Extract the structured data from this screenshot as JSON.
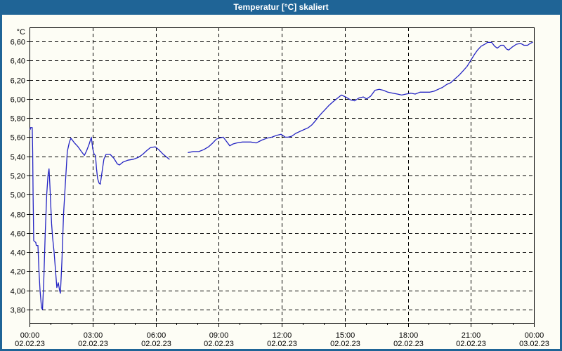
{
  "window": {
    "title": "Temperatur [°C] skaliert"
  },
  "colors": {
    "titlebar_bg": "#1f6496",
    "titlebar_text": "#ffffff",
    "window_border": "#1f6496",
    "content_bg": "#fdfdf5",
    "line": "#2424c3",
    "grid": "#000000",
    "text": "#000000"
  },
  "chart_data": {
    "type": "line",
    "title": "Temperatur [°C] skaliert",
    "grid": true,
    "legend": "none",
    "y_axis": {
      "unit_label": "°C",
      "min": 3.66,
      "max": 6.75,
      "tick_values": [
        6.6,
        6.4,
        6.2,
        6.0,
        5.8,
        5.6,
        5.4,
        5.2,
        5.0,
        4.8,
        4.6,
        4.4,
        4.2,
        4.0,
        3.8
      ],
      "tick_labels": [
        "6,60",
        "6,40",
        "6,20",
        "6,00",
        "5,80",
        "5,60",
        "5,40",
        "5,20",
        "5,00",
        "4,80",
        "4,60",
        "4,40",
        "4,20",
        "4,00",
        "3,80"
      ]
    },
    "x_axis": {
      "range_hours": [
        0,
        24
      ],
      "minor_tick_every_hours": 1,
      "major_ticks": [
        {
          "hour": 0,
          "time": "00:00",
          "date": "02.02.23"
        },
        {
          "hour": 3,
          "time": "03:00",
          "date": "02.02.23"
        },
        {
          "hour": 6,
          "time": "06:00",
          "date": "02.02.23"
        },
        {
          "hour": 9,
          "time": "09:00",
          "date": "02.02.23"
        },
        {
          "hour": 12,
          "time": "12:00",
          "date": "02.02.23"
        },
        {
          "hour": 15,
          "time": "15:00",
          "date": "02.02.23"
        },
        {
          "hour": 18,
          "time": "18:00",
          "date": "02.02.23"
        },
        {
          "hour": 21,
          "time": "21:00",
          "date": "02.02.23"
        },
        {
          "hour": 24,
          "time": "00:00",
          "date": "03.02.23"
        }
      ]
    },
    "series": [
      {
        "name": "Temperatur",
        "unit": "°C",
        "color": "#2424c3",
        "segments": [
          [
            [
              0.03,
              5.68
            ],
            [
              0.05,
              5.7
            ],
            [
              0.13,
              5.7
            ],
            [
              0.15,
              5.45
            ],
            [
              0.17,
              5.0
            ],
            [
              0.2,
              4.52
            ],
            [
              0.3,
              4.5
            ],
            [
              0.32,
              4.47
            ],
            [
              0.4,
              4.47
            ],
            [
              0.45,
              4.2
            ],
            [
              0.5,
              4.0
            ],
            [
              0.57,
              3.82
            ],
            [
              0.62,
              3.8
            ],
            [
              0.68,
              4.1
            ],
            [
              0.75,
              4.6
            ],
            [
              0.82,
              5.0
            ],
            [
              0.88,
              5.2
            ],
            [
              0.93,
              5.27
            ],
            [
              0.97,
              5.1
            ],
            [
              1.05,
              4.7
            ],
            [
              1.1,
              4.55
            ],
            [
              1.17,
              4.4
            ],
            [
              1.24,
              4.2
            ],
            [
              1.3,
              4.03
            ],
            [
              1.37,
              4.08
            ],
            [
              1.43,
              4.0
            ],
            [
              1.47,
              3.97
            ],
            [
              1.54,
              4.3
            ],
            [
              1.62,
              4.8
            ],
            [
              1.7,
              5.1
            ],
            [
              1.8,
              5.45
            ],
            [
              1.9,
              5.55
            ],
            [
              1.97,
              5.59
            ],
            [
              2.14,
              5.54
            ],
            [
              2.31,
              5.5
            ],
            [
              2.47,
              5.45
            ],
            [
              2.61,
              5.41
            ],
            [
              2.72,
              5.46
            ],
            [
              2.84,
              5.53
            ],
            [
              2.94,
              5.6
            ],
            [
              3.01,
              5.48
            ],
            [
              3.08,
              5.42
            ],
            [
              3.14,
              5.41
            ],
            [
              3.19,
              5.27
            ],
            [
              3.24,
              5.17
            ],
            [
              3.31,
              5.12
            ],
            [
              3.37,
              5.11
            ],
            [
              3.44,
              5.22
            ],
            [
              3.54,
              5.37
            ],
            [
              3.64,
              5.42
            ],
            [
              3.84,
              5.42
            ],
            [
              4.01,
              5.38
            ],
            [
              4.18,
              5.32
            ],
            [
              4.28,
              5.31
            ],
            [
              4.45,
              5.34
            ],
            [
              4.68,
              5.36
            ],
            [
              4.95,
              5.37
            ],
            [
              5.18,
              5.39
            ],
            [
              5.38,
              5.42
            ],
            [
              5.58,
              5.46
            ],
            [
              5.75,
              5.49
            ],
            [
              5.98,
              5.5
            ],
            [
              6.15,
              5.47
            ],
            [
              6.32,
              5.43
            ],
            [
              6.48,
              5.4
            ],
            [
              6.65,
              5.37
            ]
          ],
          [
            [
              7.55,
              5.44
            ],
            [
              7.79,
              5.45
            ],
            [
              8.06,
              5.45
            ],
            [
              8.29,
              5.47
            ],
            [
              8.52,
              5.5
            ],
            [
              8.72,
              5.54
            ],
            [
              8.89,
              5.58
            ],
            [
              9.02,
              5.59
            ],
            [
              9.22,
              5.6
            ],
            [
              9.36,
              5.56
            ],
            [
              9.53,
              5.51
            ],
            [
              9.69,
              5.53
            ],
            [
              9.86,
              5.54
            ],
            [
              10.13,
              5.55
            ],
            [
              10.53,
              5.55
            ],
            [
              10.79,
              5.54
            ],
            [
              11.06,
              5.57
            ],
            [
              11.3,
              5.59
            ],
            [
              11.53,
              5.6
            ],
            [
              11.77,
              5.62
            ],
            [
              11.97,
              5.63
            ],
            [
              12.17,
              5.6
            ],
            [
              12.3,
              5.6
            ],
            [
              12.47,
              5.61
            ],
            [
              12.67,
              5.64
            ],
            [
              12.87,
              5.66
            ],
            [
              13.07,
              5.68
            ],
            [
              13.27,
              5.7
            ],
            [
              13.44,
              5.73
            ],
            [
              13.6,
              5.77
            ],
            [
              13.74,
              5.81
            ],
            [
              13.9,
              5.85
            ],
            [
              14.07,
              5.89
            ],
            [
              14.24,
              5.93
            ],
            [
              14.44,
              5.97
            ],
            [
              14.61,
              6.0
            ],
            [
              14.84,
              6.04
            ],
            [
              15.04,
              6.02
            ],
            [
              15.27,
              5.99
            ],
            [
              15.47,
              5.98
            ],
            [
              15.68,
              6.01
            ],
            [
              15.88,
              6.02
            ],
            [
              16.04,
              6.0
            ],
            [
              16.24,
              6.03
            ],
            [
              16.44,
              6.09
            ],
            [
              16.64,
              6.1
            ],
            [
              16.84,
              6.09
            ],
            [
              17.05,
              6.07
            ],
            [
              17.28,
              6.06
            ],
            [
              17.51,
              6.05
            ],
            [
              17.71,
              6.04
            ],
            [
              17.92,
              6.05
            ],
            [
              18.15,
              6.06
            ],
            [
              18.35,
              6.05
            ],
            [
              18.58,
              6.07
            ],
            [
              18.82,
              6.07
            ],
            [
              19.05,
              6.07
            ],
            [
              19.25,
              6.08
            ],
            [
              19.45,
              6.1
            ],
            [
              19.65,
              6.12
            ],
            [
              19.85,
              6.15
            ],
            [
              20.05,
              6.17
            ],
            [
              20.25,
              6.21
            ],
            [
              20.45,
              6.25
            ],
            [
              20.66,
              6.3
            ],
            [
              20.82,
              6.34
            ],
            [
              20.99,
              6.4
            ],
            [
              21.16,
              6.46
            ],
            [
              21.32,
              6.51
            ],
            [
              21.49,
              6.55
            ],
            [
              21.66,
              6.57
            ],
            [
              21.79,
              6.59
            ],
            [
              21.99,
              6.59
            ],
            [
              22.13,
              6.55
            ],
            [
              22.26,
              6.53
            ],
            [
              22.43,
              6.56
            ],
            [
              22.56,
              6.56
            ],
            [
              22.7,
              6.52
            ],
            [
              22.8,
              6.51
            ],
            [
              22.96,
              6.54
            ],
            [
              23.16,
              6.57
            ],
            [
              23.36,
              6.58
            ],
            [
              23.53,
              6.56
            ],
            [
              23.7,
              6.56
            ],
            [
              23.83,
              6.58
            ],
            [
              23.93,
              6.59
            ]
          ]
        ]
      }
    ]
  }
}
